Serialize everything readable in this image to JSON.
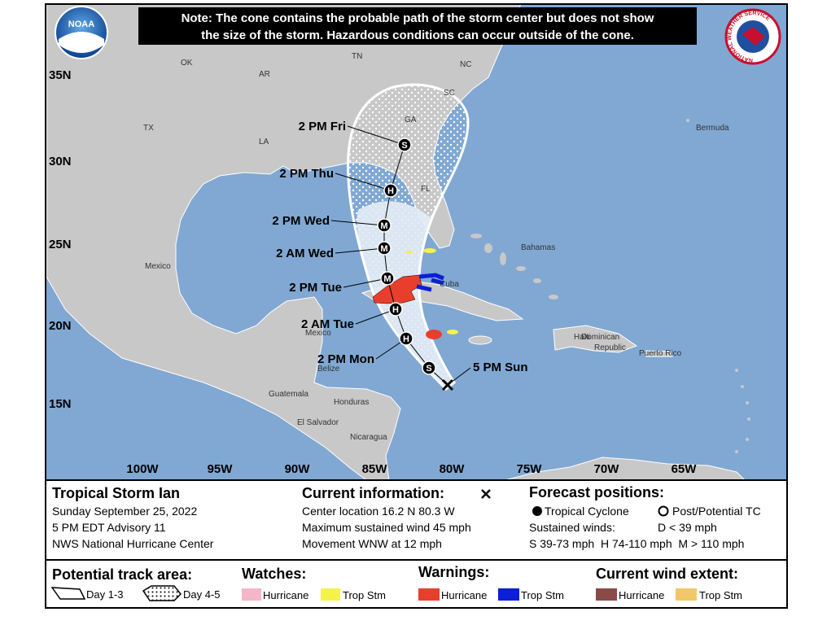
{
  "header": {
    "note_lines": [
      "Note: The cone contains the probable path of the storm center but does not show",
      "the size of the storm. Hazardous conditions can occur outside of the cone."
    ],
    "noaa_logo": "NOAA",
    "nws_logo": "NATIONAL WEATHER SERVICE"
  },
  "map": {
    "lat_labels": [
      "35N",
      "30N",
      "25N",
      "20N",
      "15N"
    ],
    "lon_labels": [
      "100W",
      "95W",
      "90W",
      "85W",
      "80W",
      "75W",
      "70W",
      "65W"
    ],
    "places": [
      "OK",
      "TN",
      "NC",
      "AR",
      "SC",
      "TX",
      "LA",
      "GA",
      "FL",
      "Bermuda",
      "Mexico",
      "Bahamas",
      "Cuba",
      "Mexico",
      "Haiti",
      "Dominican",
      "Republic",
      "Puerto Rico",
      "Belize",
      "Guatemala",
      "Honduras",
      "El Salvador",
      "Nicaragua"
    ],
    "current_position": {
      "label": "5 PM Sun"
    },
    "forecast_points": [
      {
        "intensity": "S"
      },
      {
        "label": "2 PM Mon",
        "intensity": "H"
      },
      {
        "label": "2 AM Tue",
        "intensity": "H"
      },
      {
        "label": "2 PM Tue",
        "intensity": "M"
      },
      {
        "label": "2 AM Wed",
        "intensity": "M"
      },
      {
        "label": "2 PM Wed",
        "intensity": "M"
      },
      {
        "label": "2 PM Thu",
        "intensity": "H"
      },
      {
        "label": "2 PM Fri",
        "intensity": "S"
      }
    ]
  },
  "info": {
    "storm": {
      "title": "Tropical Storm Ian",
      "lines": [
        "Sunday September 25, 2022",
        "5 PM EDT Advisory 11",
        "NWS National Hurricane Center"
      ]
    },
    "current": {
      "title": "Current information:",
      "lines": [
        "Center location 16.2 N 80.3 W",
        "Maximum sustained wind 45 mph",
        "Movement WNW at 12 mph"
      ]
    },
    "forecast": {
      "title": "Forecast positions:",
      "tropical_cyclone": "Tropical Cyclone",
      "post_potential": "Post/Potential TC",
      "sustained_winds": "Sustained winds:",
      "d_range": "D < 39 mph",
      "ranges": "S 39-73 mph  H 74-110 mph  M > 110 mph"
    }
  },
  "legend": {
    "track_area": {
      "title": "Potential track area:",
      "day13": "Day 1-3",
      "day45": "Day 4-5"
    },
    "watches": {
      "title": "Watches:",
      "hurricane": "Hurricane",
      "trop_stm": "Trop Stm"
    },
    "warnings": {
      "title": "Warnings:",
      "hurricane": "Hurricane",
      "trop_stm": "Trop Stm"
    },
    "wind_extent": {
      "title": "Current wind extent:",
      "hurricane": "Hurricane",
      "trop_stm": "Trop Stm"
    }
  }
}
